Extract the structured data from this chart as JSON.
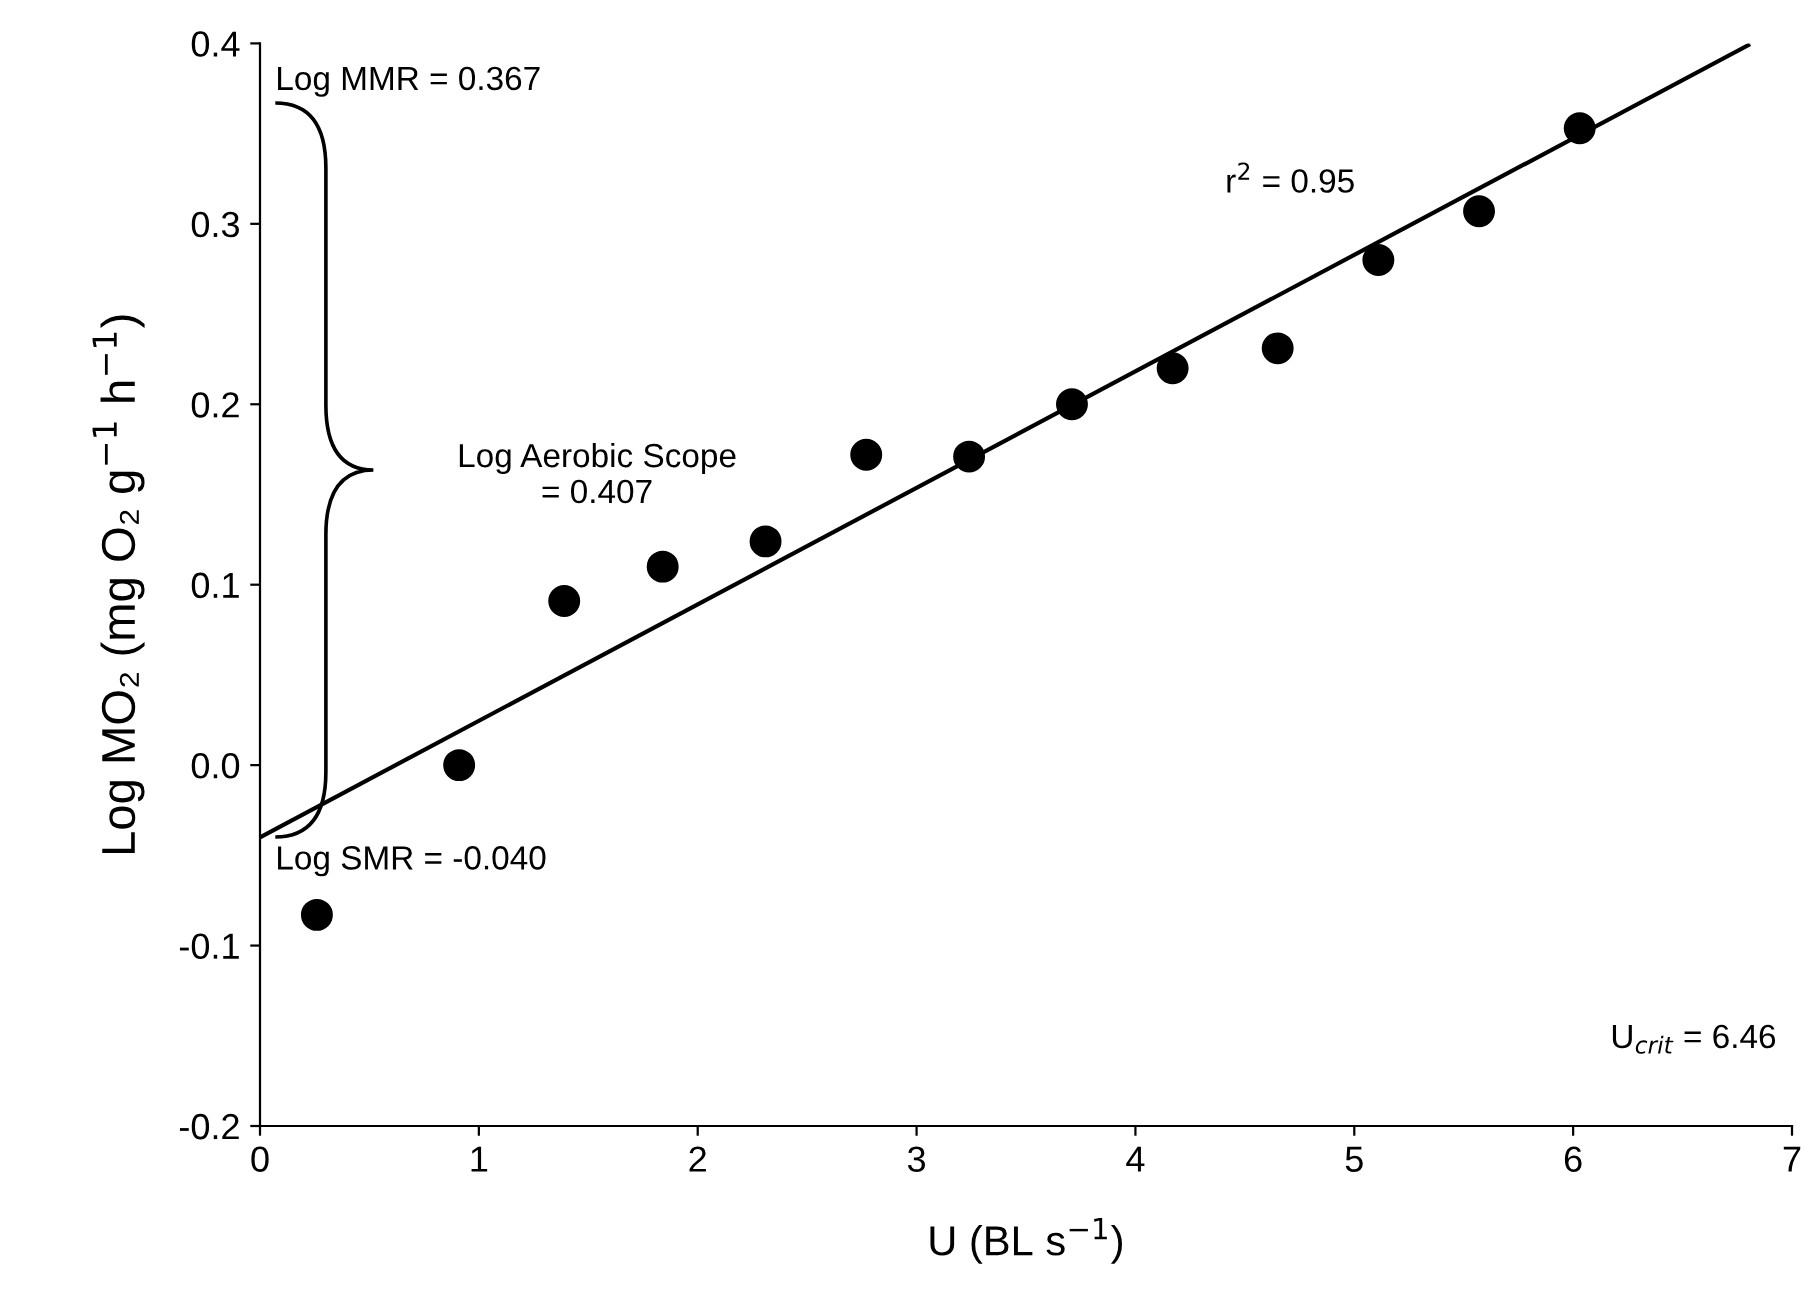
{
  "chart_data": {
    "type": "scatter",
    "xlabel": "U (BL s$^{−1}$)",
    "ylabel": "Log MO₂ (mg O₂ g$^{−1}$ h$^{−1}$)",
    "xlim": [
      0,
      7
    ],
    "xticks": [
      0,
      1,
      2,
      3,
      4,
      5,
      6,
      7
    ],
    "ylim": [
      -0.2,
      0.4
    ],
    "yticks": [
      -0.2,
      -0.1,
      {
        "value": 0,
        "label": "0.0"
      },
      0.1,
      0.2,
      0.3,
      0.4
    ],
    "grid": false,
    "legend": false,
    "series": [
      {
        "color": "#000000",
        "marker": "circle",
        "x": [
          0.26,
          0.91,
          1.39,
          1.84,
          2.31,
          2.77,
          3.24,
          3.71,
          4.17,
          4.65,
          5.11,
          5.57,
          6.03
        ],
        "values": [
          -0.083,
          0.0,
          0.091,
          0.11,
          0.124,
          0.172,
          0.171,
          0.2,
          0.22,
          0.231,
          0.28,
          0.307,
          0.353
        ]
      },
      {
        "type": "line",
        "color": "#000000",
        "marker": "none",
        "line_style": "solid",
        "x": [
          0,
          6.8
        ],
        "values": [
          -0.04,
          0.399
        ]
      }
    ],
    "annotations": [
      "Log MMR = 0.367",
      "Log SMR = -0.040",
      "Log Aerobic Scope\n= 0.407",
      "r$^{2}$ = 0.95",
      "U$_{crit}$ = 6.46"
    ]
  }
}
